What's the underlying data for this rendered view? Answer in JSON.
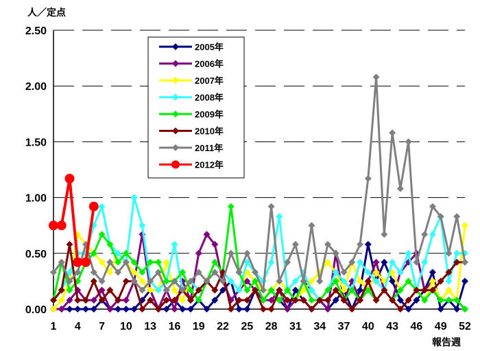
{
  "unit_label": "人／定点",
  "xlabel": "報告週",
  "chart_data": {
    "type": "line",
    "title": "",
    "ylabel": "人／定点",
    "xlabel": "報告週",
    "ylim": [
      0,
      2.5
    ],
    "xlim": [
      1,
      52
    ],
    "y_ticks": [
      "0.00",
      "0.50",
      "1.00",
      "1.50",
      "2.00",
      "2.50"
    ],
    "x_ticks": [
      1,
      4,
      7,
      10,
      13,
      16,
      19,
      22,
      25,
      28,
      31,
      34,
      37,
      40,
      43,
      46,
      49,
      52
    ],
    "grid": "horizontal dashed",
    "legend_position": "top-left",
    "series": [
      {
        "name": "2005年",
        "color": "#000080",
        "marker": "diamond",
        "values": [
          0,
          0,
          0,
          0,
          0,
          0,
          0.08,
          0,
          0,
          0,
          0,
          0.08,
          0.17,
          0,
          0,
          0.08,
          0,
          0,
          0.08,
          0,
          0.08,
          0.17,
          0.25,
          0,
          0,
          0.17,
          0.08,
          0.17,
          0.08,
          0,
          0.17,
          0.08,
          0,
          0.08,
          0,
          0.08,
          0.17,
          0,
          0.17,
          0.58,
          0.25,
          0.42,
          0.25,
          0.08,
          0,
          0.08,
          0.17,
          0.33,
          0,
          0.08,
          0,
          0.25
        ]
      },
      {
        "name": "2006年",
        "color": "#800080",
        "marker": "diamond",
        "values": [
          0,
          0,
          0.08,
          0.17,
          0.08,
          0.08,
          0.17,
          0,
          0.08,
          0.08,
          0.25,
          0.67,
          0.17,
          0,
          0.17,
          0,
          0.25,
          0.08,
          0.5,
          0.67,
          0.58,
          0.25,
          0.08,
          0.17,
          0.25,
          0.17,
          0.08,
          0.08,
          0.17,
          0,
          0.08,
          0.25,
          0.17,
          0.08,
          0,
          0.5,
          0.08,
          0.25,
          0.08,
          0.25,
          0.42,
          0.17,
          0.08,
          0.33,
          0.42,
          0.5,
          0.17,
          0.25,
          0.08,
          0.17,
          0.08,
          0
        ]
      },
      {
        "name": "2007年",
        "color": "#FFFF00",
        "marker": "diamond",
        "values": [
          0,
          0.08,
          0.25,
          0.67,
          0.58,
          0.5,
          0.42,
          0.33,
          0.5,
          0.42,
          0.33,
          0.25,
          0.17,
          0.17,
          0.42,
          0.17,
          0.08,
          0.25,
          0.17,
          0.25,
          0.17,
          0.33,
          0.25,
          0.17,
          0.33,
          0.25,
          0.17,
          0.17,
          0.25,
          0.17,
          0.08,
          0.17,
          0.25,
          0.33,
          0.42,
          0.33,
          0.17,
          0.42,
          0.25,
          0.17,
          0.33,
          0.25,
          0.33,
          0.17,
          0.25,
          0.17,
          0.08,
          0.25,
          0.08,
          0.17,
          0.08,
          0.75
        ]
      },
      {
        "name": "2008年",
        "color": "#33FFFF",
        "marker": "diamond",
        "values": [
          0.08,
          0.17,
          0.33,
          0.5,
          0.5,
          0.75,
          0.92,
          0.58,
          0.5,
          0.42,
          1.0,
          0.75,
          0.25,
          0.17,
          0.25,
          0.58,
          0.17,
          0.25,
          0.17,
          0.25,
          0.17,
          0.33,
          0.25,
          0.17,
          0.42,
          0.33,
          0.25,
          0.42,
          0.83,
          0.17,
          0.25,
          0.33,
          0.17,
          0.08,
          0.17,
          0.33,
          0.25,
          0.17,
          0.42,
          0.33,
          0.25,
          0.17,
          0.42,
          0.33,
          0.5,
          0.17,
          0.42,
          0.67,
          0.83,
          0.25,
          0.5,
          0.5
        ]
      },
      {
        "name": "2009年",
        "color": "#00EE00",
        "marker": "diamond",
        "values": [
          0.08,
          0.42,
          0.17,
          0.25,
          0.42,
          0.5,
          0.67,
          0.58,
          0.42,
          0.5,
          0.42,
          0.33,
          0.42,
          0.42,
          0.25,
          0.25,
          0.33,
          0.17,
          0.08,
          0.25,
          0.42,
          0.33,
          0.92,
          0.33,
          0.17,
          0.25,
          0.08,
          0.17,
          0.08,
          0.17,
          0.08,
          0.25,
          0.08,
          0.08,
          0.17,
          0.25,
          0.08,
          0.17,
          0.08,
          0.17,
          0.08,
          0.17,
          0.08,
          0.17,
          0.25,
          0.17,
          0.08,
          0.17,
          0.08,
          0.08,
          0.08,
          0
        ]
      },
      {
        "name": "2010年",
        "color": "#800000",
        "marker": "diamond",
        "values": [
          0.08,
          0.17,
          0.58,
          0.08,
          0.08,
          0.25,
          0.08,
          0.17,
          0.08,
          0.25,
          0.25,
          0,
          0.08,
          0,
          0.08,
          0.08,
          0.17,
          0.08,
          0.17,
          0.25,
          0.17,
          0.33,
          0,
          0.08,
          0.08,
          0.17,
          0,
          0,
          0.17,
          0.08,
          0.08,
          0.08,
          0,
          0.08,
          0.08,
          0.17,
          0.08,
          0,
          0.08,
          0.25,
          0.08,
          0.17,
          0.08,
          0,
          0.08,
          0.17,
          0.17,
          0.17,
          0.25,
          0.33,
          0.42,
          0.42
        ]
      },
      {
        "name": "2011年",
        "color": "#808080",
        "marker": "diamond",
        "values": [
          0.33,
          0.42,
          0.25,
          0.33,
          0.58,
          0.33,
          0.25,
          0.42,
          0.33,
          0.42,
          0.25,
          0.17,
          0.25,
          0.33,
          0.17,
          0.25,
          0.17,
          0.25,
          0.33,
          0.25,
          0.33,
          0.25,
          0.5,
          0.33,
          0.5,
          0.33,
          0.17,
          0.92,
          0.25,
          0.42,
          0.58,
          0.25,
          0.75,
          0.25,
          0.58,
          0.5,
          0.33,
          0.42,
          0.58,
          1.17,
          2.08,
          0.67,
          1.58,
          1.08,
          1.5,
          0.42,
          0.67,
          0.92,
          0.83,
          0.5,
          0.83,
          0.42
        ]
      },
      {
        "name": "2012年",
        "color": "#FF0000",
        "marker": "circle",
        "values": [
          0.75,
          0.75,
          1.17,
          0.42,
          0.42,
          0.92
        ]
      }
    ]
  }
}
